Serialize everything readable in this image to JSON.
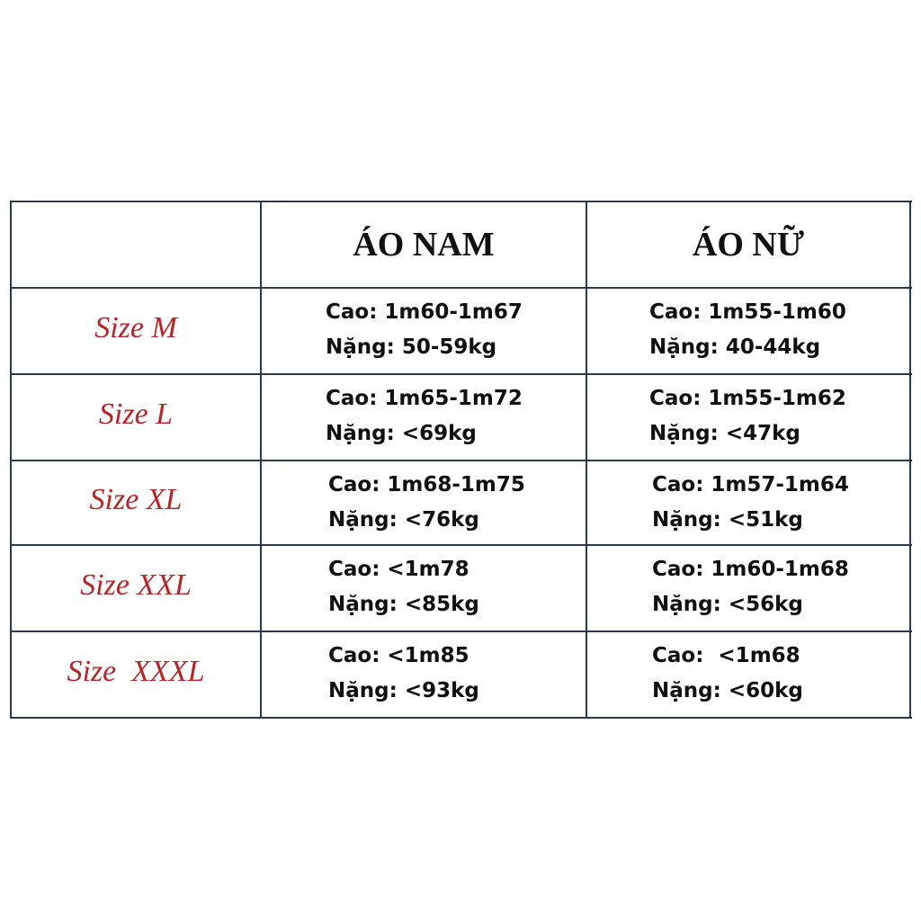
{
  "table": {
    "header": [
      "ÁO NAM",
      "ÁO NỮ"
    ],
    "rows": [
      {
        "size": "Size M",
        "men": [
          "Cao: 1m60-1m67",
          "Nặng: 50-59kg"
        ],
        "women": [
          "Cao: 1m55-1m60",
          "Nặng: 40-44kg"
        ]
      },
      {
        "size": "Size L",
        "men": [
          "Cao: 1m65-1m72",
          "Nặng: <69kg"
        ],
        "women": [
          "Cao: 1m55-1m62",
          "Nặng: <47kg"
        ]
      },
      {
        "size": "Size XL",
        "men": [
          "Cao: 1m68-1m75",
          "Nặng: <76kg"
        ],
        "women": [
          "Cao: 1m57-1m64",
          "Nặng: <51kg"
        ]
      },
      {
        "size": "Size XXL",
        "men": [
          "Cao: <1m78",
          "Nặng: <85kg"
        ],
        "women": [
          "Cao: 1m60-1m68",
          "Nặng: <56kg"
        ]
      },
      {
        "size": "Size  XXXL",
        "men": [
          "Cao: <1m85",
          "Nặng: <93kg"
        ],
        "women": [
          "Cao:  <1m68",
          "Nặng: <60kg"
        ]
      }
    ]
  }
}
